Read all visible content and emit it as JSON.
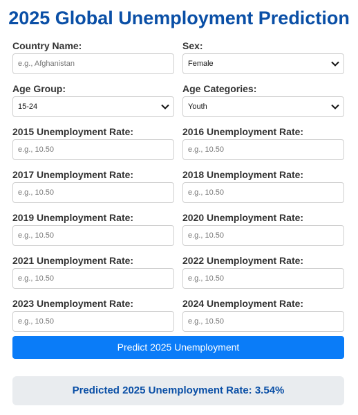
{
  "title": "2025 Global Unemployment Prediction",
  "fields": {
    "country": {
      "label": "Country Name:",
      "placeholder": "e.g., Afghanistan"
    },
    "sex": {
      "label": "Sex:",
      "value": "Female"
    },
    "age_group": {
      "label": "Age Group:",
      "value": "15-24"
    },
    "age_categories": {
      "label": "Age Categories:",
      "value": "Youth"
    },
    "rates": [
      {
        "label": "2015 Unemployment Rate:",
        "placeholder": "e.g., 10.50"
      },
      {
        "label": "2016 Unemployment Rate:",
        "placeholder": "e.g., 10.50"
      },
      {
        "label": "2017 Unemployment Rate:",
        "placeholder": "e.g., 10.50"
      },
      {
        "label": "2018 Unemployment Rate:",
        "placeholder": "e.g., 10.50"
      },
      {
        "label": "2019 Unemployment Rate:",
        "placeholder": "e.g., 10.50"
      },
      {
        "label": "2020 Unemployment Rate:",
        "placeholder": "e.g., 10.50"
      },
      {
        "label": "2021 Unemployment Rate:",
        "placeholder": "e.g., 10.50"
      },
      {
        "label": "2022 Unemployment Rate:",
        "placeholder": "e.g., 10.50"
      },
      {
        "label": "2023 Unemployment Rate:",
        "placeholder": "e.g., 10.50"
      },
      {
        "label": "2024 Unemployment Rate:",
        "placeholder": "e.g., 10.50"
      }
    ]
  },
  "button": {
    "label": "Predict 2025 Unemployment"
  },
  "result": {
    "text": "Predicted 2025 Unemployment Rate: 3.54%"
  },
  "colors": {
    "title": "#0a4fa6",
    "button": "#0a7cf8",
    "result_bg": "#e9ecef"
  },
  "icons": {
    "select": "chevron-down-icon"
  }
}
